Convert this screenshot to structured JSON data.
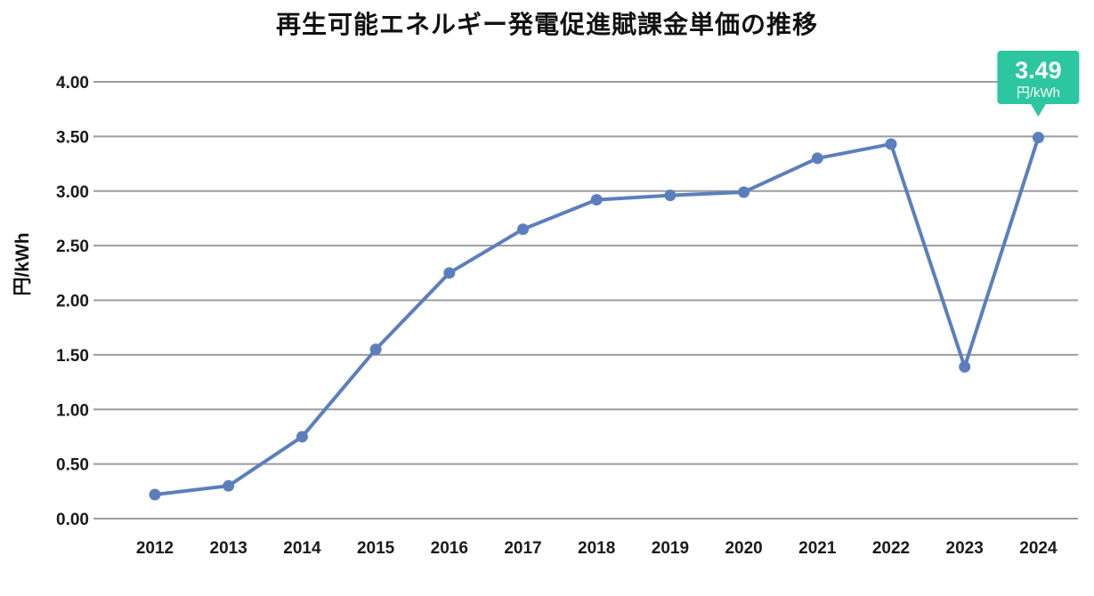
{
  "chart_data": {
    "type": "line",
    "title": "再生可能エネルギー発電促進賦課金単価の推移",
    "ylabel": "円/kWh",
    "xlabel": "",
    "categories": [
      "2012",
      "2013",
      "2014",
      "2015",
      "2016",
      "2017",
      "2018",
      "2019",
      "2020",
      "2021",
      "2022",
      "2023",
      "2024"
    ],
    "values": [
      0.22,
      0.3,
      0.75,
      1.55,
      2.25,
      2.65,
      2.92,
      2.96,
      2.99,
      3.3,
      3.43,
      1.39,
      3.49
    ],
    "series_name": "賦課金単価",
    "ylim": [
      0,
      4
    ],
    "ytick_labels": [
      "0.00",
      "0.50",
      "1.00",
      "1.50",
      "2.00",
      "2.50",
      "3.00",
      "3.50",
      "4.00"
    ],
    "grid": "horizontal",
    "legend": "none",
    "line_color": "#5b7fbd",
    "marker_color": "#5b7fbd",
    "grid_color": "#9c9c9c",
    "annotation": {
      "value": "3.49",
      "unit": "円/kWh",
      "target_category": "2024",
      "bg_color": "#2cc6a1",
      "text_color": "#ffffff"
    }
  }
}
